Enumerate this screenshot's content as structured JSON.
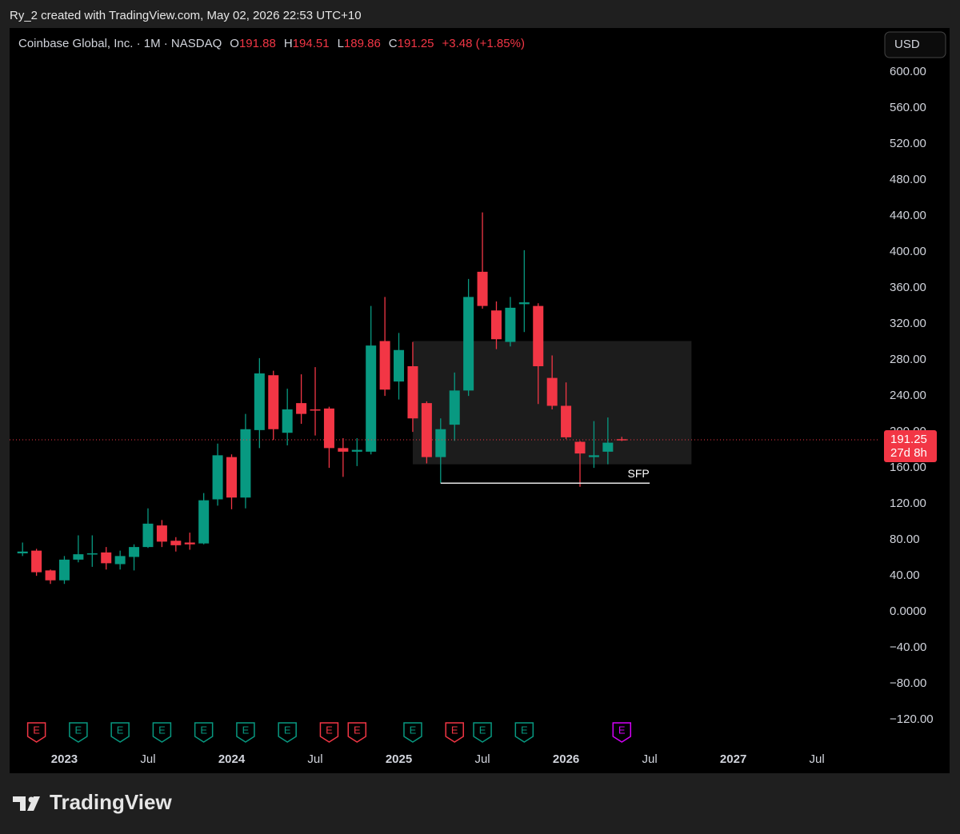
{
  "page_header": "Ry_2 created with TradingView.com, May 02, 2026 22:53 UTC+10",
  "footer_brand": "TradingView",
  "chart_data": {
    "type": "candlestick",
    "symbol": "Coinbase Global, Inc. · 1M · NASDAQ",
    "ohlc_labels": [
      "O",
      "H",
      "L",
      "C"
    ],
    "change": "+3.48 (+1.85%)",
    "currency": "USD",
    "countdown": "27d 8h",
    "earnings_label": "E",
    "annotation": "SFP",
    "sfp_level": 143,
    "zone": {
      "high": 301,
      "low": 164
    },
    "up_color": "#089981",
    "down_color": "#f23645",
    "grid": false,
    "categories": [
      null,
      null,
      null,
      "2023",
      null,
      null,
      null,
      null,
      null,
      "Jul",
      null,
      null,
      null,
      null,
      null,
      "2024",
      null,
      null,
      null,
      null,
      null,
      "Jul",
      null,
      null,
      null,
      null,
      null,
      "2025",
      null,
      null,
      null,
      null,
      null,
      "Jul",
      null,
      null,
      null,
      null,
      null,
      "2026",
      null,
      null,
      null,
      null,
      null,
      "Jul",
      null,
      null,
      null,
      null,
      null,
      "2027",
      null,
      null,
      null,
      null,
      null,
      "Jul",
      null,
      null,
      null,
      null
    ],
    "open": [
      65,
      68,
      46,
      35,
      58,
      64,
      66,
      53,
      61,
      72,
      96,
      79,
      77,
      76,
      125,
      172,
      127,
      202,
      263,
      199,
      232,
      225,
      226,
      182,
      178,
      178,
      301,
      256,
      273,
      232,
      172,
      208,
      246,
      378,
      335,
      300,
      342,
      340,
      260,
      229,
      189,
      172,
      178,
      191.88,
      null,
      null,
      null,
      null,
      null,
      null,
      null,
      null,
      null,
      null,
      null,
      null,
      null,
      null,
      null,
      null,
      null,
      null
    ],
    "high": [
      77,
      70,
      47,
      62,
      85,
      85,
      72,
      68,
      75,
      115,
      102,
      83,
      88,
      132,
      187,
      175,
      220,
      282,
      268,
      248,
      264,
      272,
      228,
      193,
      193,
      340,
      350,
      310,
      300,
      234,
      215,
      266,
      370,
      444,
      345,
      350,
      402,
      343,
      285,
      255,
      190,
      212,
      216,
      194.51,
      null,
      null,
      null,
      null,
      null,
      null,
      null,
      null,
      null,
      null,
      null,
      null,
      null,
      null,
      null,
      null,
      null,
      null
    ],
    "low": [
      62,
      40,
      31,
      31,
      55,
      50,
      47,
      47,
      46,
      71,
      72,
      67,
      69,
      75,
      118,
      114,
      115,
      182,
      191,
      185,
      209,
      196,
      160,
      150,
      162,
      175,
      240,
      236,
      200,
      165,
      143,
      190,
      240,
      337,
      292,
      295,
      311,
      231,
      225,
      192,
      139,
      160,
      164,
      189.86,
      null,
      null,
      null,
      null,
      null,
      null,
      null,
      null,
      null,
      null,
      null,
      null,
      null,
      null,
      null,
      null,
      null,
      null
    ],
    "close": [
      67,
      44,
      35,
      58,
      64,
      65,
      54,
      62,
      72,
      98,
      78,
      74,
      75,
      124,
      174,
      127,
      203,
      265,
      203,
      225,
      220,
      224,
      182,
      178,
      180,
      296,
      247,
      291,
      215,
      172,
      203,
      246,
      350,
      340,
      303,
      338,
      344,
      273,
      229,
      194,
      176,
      174,
      188,
      191.25,
      null,
      null,
      null,
      null,
      null,
      null,
      null,
      null,
      null,
      null,
      null,
      null,
      null,
      null,
      null,
      null,
      null,
      null
    ],
    "ylim": [
      -151,
      649
    ],
    "yticks": [
      {
        "value": 600,
        "label": "600.00"
      },
      {
        "value": 560,
        "label": "560.00"
      },
      {
        "value": 520,
        "label": "520.00"
      },
      {
        "value": 480,
        "label": "480.00"
      },
      {
        "value": 440,
        "label": "440.00"
      },
      {
        "value": 400,
        "label": "400.00"
      },
      {
        "value": 360,
        "label": "360.00"
      },
      {
        "value": 320,
        "label": "320.00"
      },
      {
        "value": 280,
        "label": "280.00"
      },
      {
        "value": 240,
        "label": "240.00"
      },
      {
        "value": 200,
        "label": "200.00"
      },
      {
        "value": 160,
        "label": "160.00"
      },
      {
        "value": 120,
        "label": "120.00"
      },
      {
        "value": 80,
        "label": "80.00"
      },
      {
        "value": 40,
        "label": "40.00"
      },
      {
        "value": 0,
        "label": "0.0000"
      },
      {
        "value": -40,
        "label": "−40.00"
      },
      {
        "value": -80,
        "label": "−80.00"
      },
      {
        "value": -120,
        "label": "−120.00"
      }
    ]
  }
}
